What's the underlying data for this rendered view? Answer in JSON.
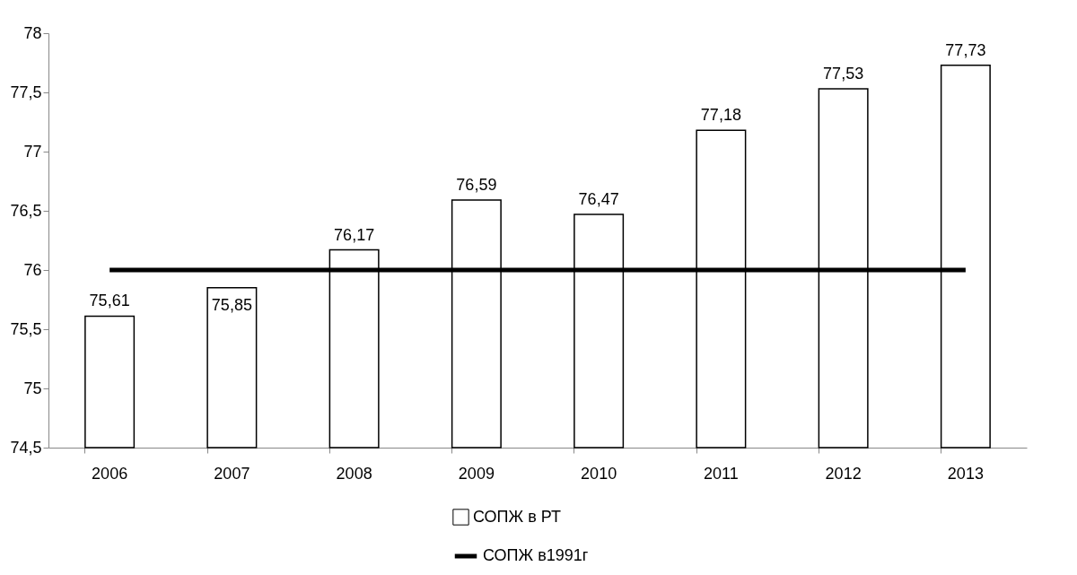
{
  "chart_data": {
    "type": "bar",
    "categories": [
      "2006",
      "2007",
      "2008",
      "2009",
      "2010",
      "2011",
      "2012",
      "2013"
    ],
    "series": [
      {
        "name": "СОПЖ в РТ",
        "color": "#ffffff",
        "values": [
          75.61,
          75.85,
          76.17,
          76.59,
          76.47,
          77.18,
          77.53,
          77.73
        ],
        "value_labels": [
          "75,61",
          "75,85",
          "76,17",
          "76,59",
          "76,47",
          "77,18",
          "77,53",
          "77,73"
        ]
      },
      {
        "name": "СОПЖ в1991г",
        "type": "line",
        "color": "#000000",
        "values": [
          76,
          76,
          76,
          76,
          76,
          76,
          76,
          76
        ]
      }
    ],
    "ylim": [
      74.5,
      78
    ],
    "yticks": [
      {
        "value": 74.5,
        "label": "74,5"
      },
      75,
      {
        "value": 75.5,
        "label": "75,5"
      },
      76,
      {
        "value": 76.5,
        "label": "76,5"
      },
      77,
      {
        "value": 77.5,
        "label": "77,5"
      },
      78
    ],
    "grid": false,
    "legend": "bottom"
  }
}
